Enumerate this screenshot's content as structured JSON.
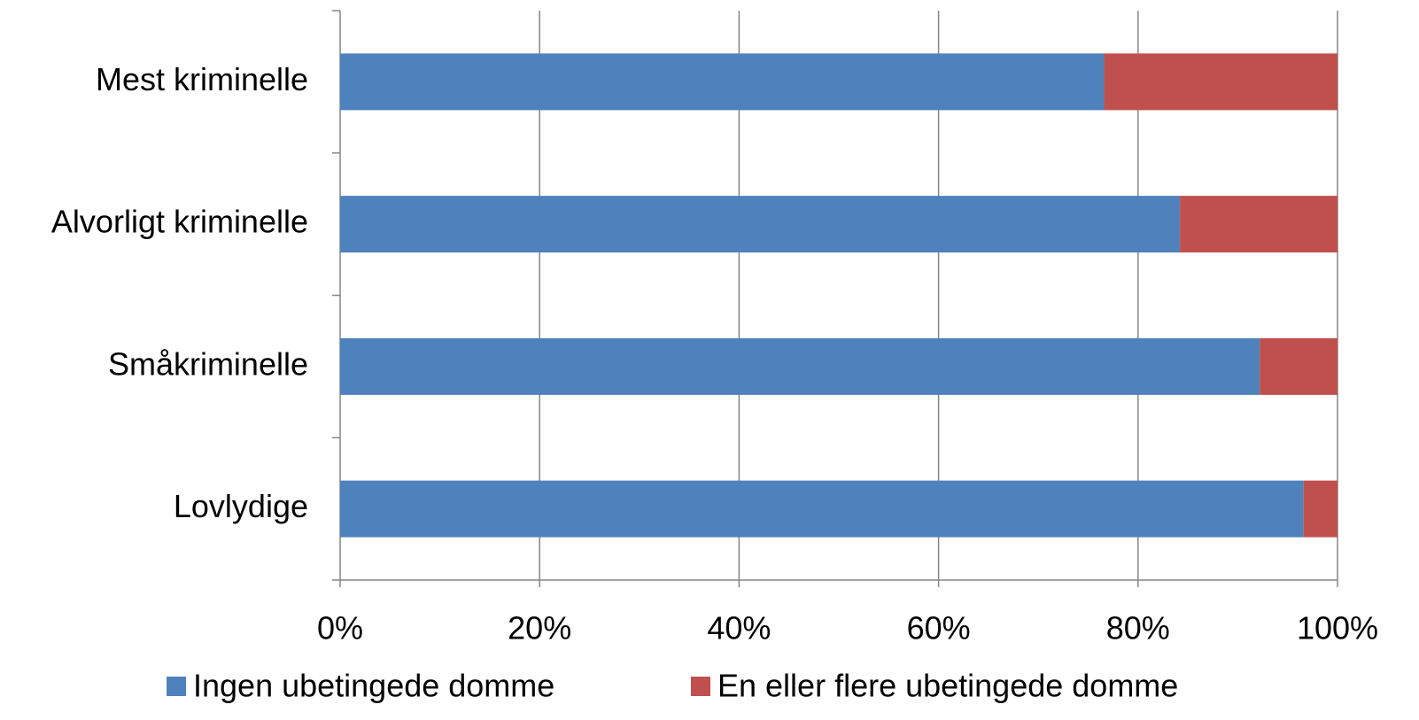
{
  "chart_data": {
    "type": "stacked-bar-horizontal",
    "categories": [
      "Mest kriminelle",
      "Alvorligt kriminelle",
      "Småkriminelle",
      "Lovlydige"
    ],
    "series": [
      {
        "name": "Ingen ubetingede domme",
        "color": "#4f81bd",
        "values": [
          76.6,
          84.2,
          92.2,
          96.6
        ]
      },
      {
        "name": "En eller flere ubetingede domme",
        "color": "#c0504d",
        "values": [
          23.4,
          15.8,
          7.8,
          3.4
        ]
      }
    ],
    "xlim": [
      0,
      100
    ],
    "xticks": [
      {
        "value": 0,
        "label": "0%"
      },
      {
        "value": 20,
        "label": "20%"
      },
      {
        "value": 40,
        "label": "40%"
      },
      {
        "value": 60,
        "label": "60%"
      },
      {
        "value": 80,
        "label": "80%"
      },
      {
        "value": 100,
        "label": "100%"
      }
    ],
    "grid": true,
    "legend": "bottom"
  }
}
